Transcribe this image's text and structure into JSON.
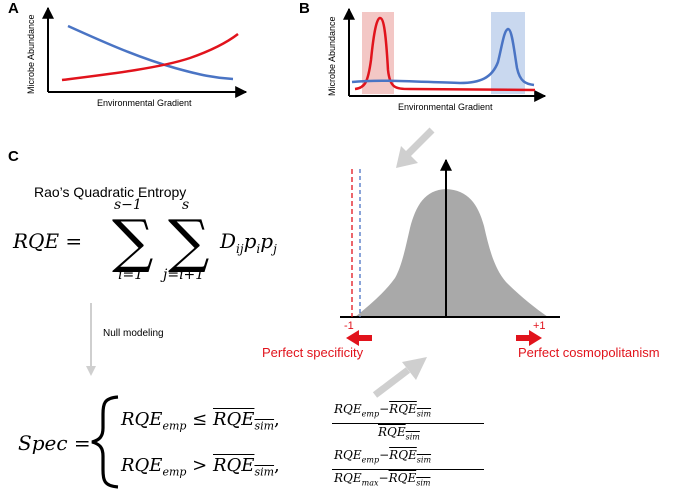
{
  "panels": {
    "a": {
      "letter": "A",
      "ylabel": "Microbe Abundance",
      "xlabel": "Environmental Gradient",
      "colors": {
        "red": "#e1131c",
        "blue": "#4a74c4"
      }
    },
    "b": {
      "letter": "B",
      "ylabel": "Microbe Abundance",
      "xlabel": "Environmental Gradient",
      "colors": {
        "red": "#e1131c",
        "blue": "#4a74c4",
        "red_band": "#f3c7c5",
        "blue_band": "#c9d8ef"
      }
    },
    "c": {
      "letter": "C",
      "rqe_title": "Rao’s Quadratic Entropy",
      "rqe_formula": {
        "lhs": "RQE =",
        "sum1_upper": "s−1",
        "sum1_lower": "i=1",
        "sum2_upper": "s",
        "sum2_lower": "j=i+1",
        "summand": "D",
        "summand_sub": "ij",
        "p1": "p",
        "p1_sub": "i",
        "p2": "p",
        "p2_sub": "j"
      },
      "null_modeling_label": "Null modeling",
      "spec_formula": {
        "lhs": "Spec =",
        "case1_left": "RQE",
        "case1_left_sub": "emp",
        "case1_op": "≤",
        "case1_right": "RQE",
        "case1_right_sub": "sim",
        "case1_comma": ",",
        "case1_num_a": "RQE",
        "case1_num_a_sub": "emp",
        "case1_num_minus": "−",
        "case1_num_b": "RQE",
        "case1_num_b_sub": "sim",
        "case1_den": "RQE",
        "case1_den_sub": "sim",
        "case2_left": "RQE",
        "case2_left_sub": "emp",
        "case2_op": ">",
        "case2_right": "RQE",
        "case2_right_sub": "sim",
        "case2_comma": ",",
        "case2_num_a": "RQE",
        "case2_num_a_sub": "emp",
        "case2_num_minus": "−",
        "case2_num_b": "RQE",
        "case2_num_b_sub": "sim",
        "case2_den_a": "RQE",
        "case2_den_a_sub": "max",
        "case2_den_minus": "−",
        "case2_den_b": "RQE",
        "case2_den_b_sub": "sim"
      },
      "distribution": {
        "tick_left": "-1",
        "tick_right": "+1",
        "label_left": "Perfect specificity",
        "label_right": "Perfect cosmopolitanism",
        "fill_color": "#a9a9a9",
        "red_line_color": "#e1131c",
        "blue_line_color": "#4a74c4",
        "arrow_color": "#e1131c",
        "gray_arrow_color": "#cfcfcf"
      }
    }
  }
}
